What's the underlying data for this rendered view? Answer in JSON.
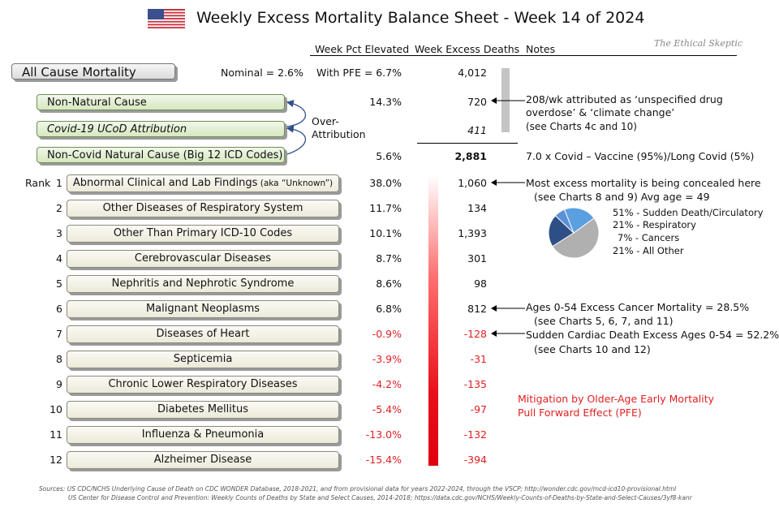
{
  "title": "Weekly Excess Mortality Balance Sheet - Week 14 of 2024",
  "watermark": "The Ethical Skeptic",
  "columns": {
    "pct": "Week Pct Elevated",
    "deaths": "Week Excess Deaths",
    "notes": "Notes"
  },
  "all_cause": {
    "label": "All Cause Mortality",
    "nominal": "Nominal = 2.6%",
    "with_pfe": "With PFE =",
    "pct": "6.7%",
    "deaths": "4,012"
  },
  "non_natural": {
    "label": "Non-Natural Cause",
    "pct": "14.3%",
    "deaths": "720",
    "note": [
      "208/wk attributed as ‘unspecified drug",
      "overdose’ & ‘climate change’",
      "(see Charts 4c and 10)"
    ]
  },
  "over_attribution": [
    "Over-",
    "Attribution"
  ],
  "covid": {
    "label": "Covid-19 UCoD Attribution",
    "deaths": "411"
  },
  "non_covid": {
    "label": "Non-Covid Natural Cause (Big 12 ICD Codes)",
    "pct": "5.6%",
    "deaths": "2,881",
    "note": "7.0 x Covid – Vaccine (95%)/Long Covid (5%)"
  },
  "rank_word": "Rank",
  "causes": [
    {
      "rank": "1",
      "label": "Abnormal Clinical and Lab Findings",
      "sub": " (aka “Unknown”)",
      "pct": "38.0%",
      "deaths": "1,060"
    },
    {
      "rank": "2",
      "label": "Other Diseases of Respiratory System",
      "pct": "11.7%",
      "deaths": "134"
    },
    {
      "rank": "3",
      "label": "Other Than Primary ICD-10 Codes",
      "pct": "10.1%",
      "deaths": "1,393"
    },
    {
      "rank": "4",
      "label": "Cerebrovascular Diseases",
      "pct": "8.7%",
      "deaths": "301"
    },
    {
      "rank": "5",
      "label": "Nephritis and Nephrotic Syndrome",
      "pct": "8.6%",
      "deaths": "98"
    },
    {
      "rank": "6",
      "label": "Malignant Neoplasms",
      "pct": "6.8%",
      "deaths": "812"
    },
    {
      "rank": "7",
      "label": "Diseases of Heart",
      "pct": "-0.9%",
      "deaths": "-128"
    },
    {
      "rank": "8",
      "label": "Septicemia",
      "pct": "-3.9%",
      "deaths": "-31"
    },
    {
      "rank": "9",
      "label": "Chronic Lower Respiratory Diseases",
      "pct": "-4.2%",
      "deaths": "-135"
    },
    {
      "rank": "10",
      "label": "Diabetes Mellitus",
      "pct": "-5.4%",
      "deaths": "-97"
    },
    {
      "rank": "11",
      "label": "Influenza & Pneumonia",
      "pct": "-13.0%",
      "deaths": "-132"
    },
    {
      "rank": "12",
      "label": "Alzheimer Disease",
      "pct": "-15.4%",
      "deaths": "-394"
    }
  ],
  "notes": {
    "concealed": [
      "Most excess mortality is being concealed here",
      "(see Charts 8 and 9) Avg age = 49"
    ],
    "cancer": [
      "Ages 0-54 Excess Cancer Mortality = 28.5%",
      "(see Charts 5, 6, 7, and 11)"
    ],
    "cardiac": [
      "Sudden Cardiac Death Excess Ages 0-54 = 52.2%",
      "(see Charts 10 and 12)"
    ],
    "mitigation": [
      "Mitigation by Older-Age Early Mortality",
      "Pull Forward Effect (PFE)"
    ]
  },
  "chart_data": {
    "type": "pie",
    "categories": [
      "Sudden Death/Circulatory",
      "Respiratory",
      "Cancers",
      "All Other"
    ],
    "values": [
      51,
      21,
      7,
      21
    ],
    "labels": [
      "51% - Sudden Death/Circulatory",
      "21% - Respiratory",
      "7% - Cancers",
      "21% - All Other"
    ],
    "colors": [
      "#b0b0b0",
      "#2e4f85",
      "#5a90d6",
      "#5aa0e0"
    ]
  },
  "colors": {
    "negative": "#e02020",
    "accent_red": "#e8101a"
  },
  "sources": [
    "Sources:   US CDC/NCHS Underlying Cause of Death on CDC WONDER Database, 2018-2021, and from provisional data for years 2022-2024, through the VSCP; http://wonder.cdc.gov/mcd-icd10-provisional.html",
    "US Center for Disease Control and Prevention:  Weekly Counts of Deaths by State and Select Causes, 2014-2018; https://data.cdc.gov/NCHS/Weekly-Counts-of-Deaths-by-State-and-Select-Causes/3yf8-kanr"
  ]
}
